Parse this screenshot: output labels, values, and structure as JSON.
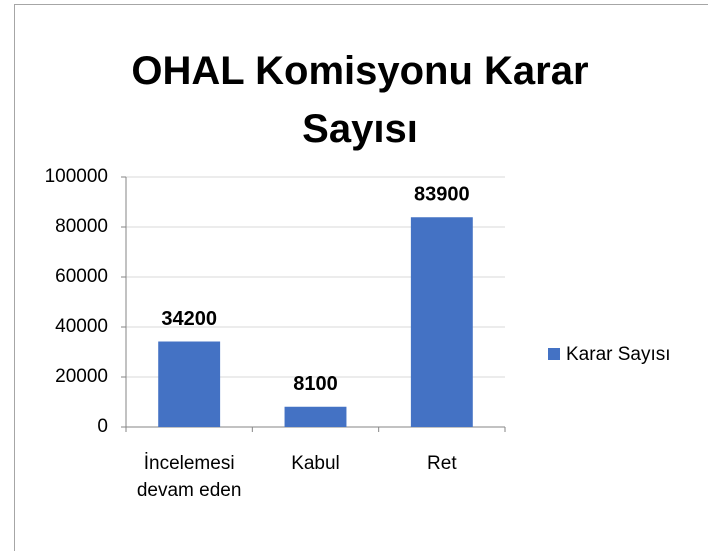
{
  "chart_data": {
    "type": "bar",
    "title": "OHAL Komisyonu Karar Sayısı",
    "categories": [
      "İncelemesi devam eden",
      "Kabul",
      "Ret"
    ],
    "series": [
      {
        "name": "Karar Sayısı",
        "color": "#4472c4",
        "values": [
          34200,
          8100,
          83900
        ]
      }
    ],
    "ylim": [
      0,
      100000
    ],
    "yticks": [
      0,
      20000,
      40000,
      60000,
      80000,
      100000
    ],
    "grid": true,
    "legend": "right"
  }
}
